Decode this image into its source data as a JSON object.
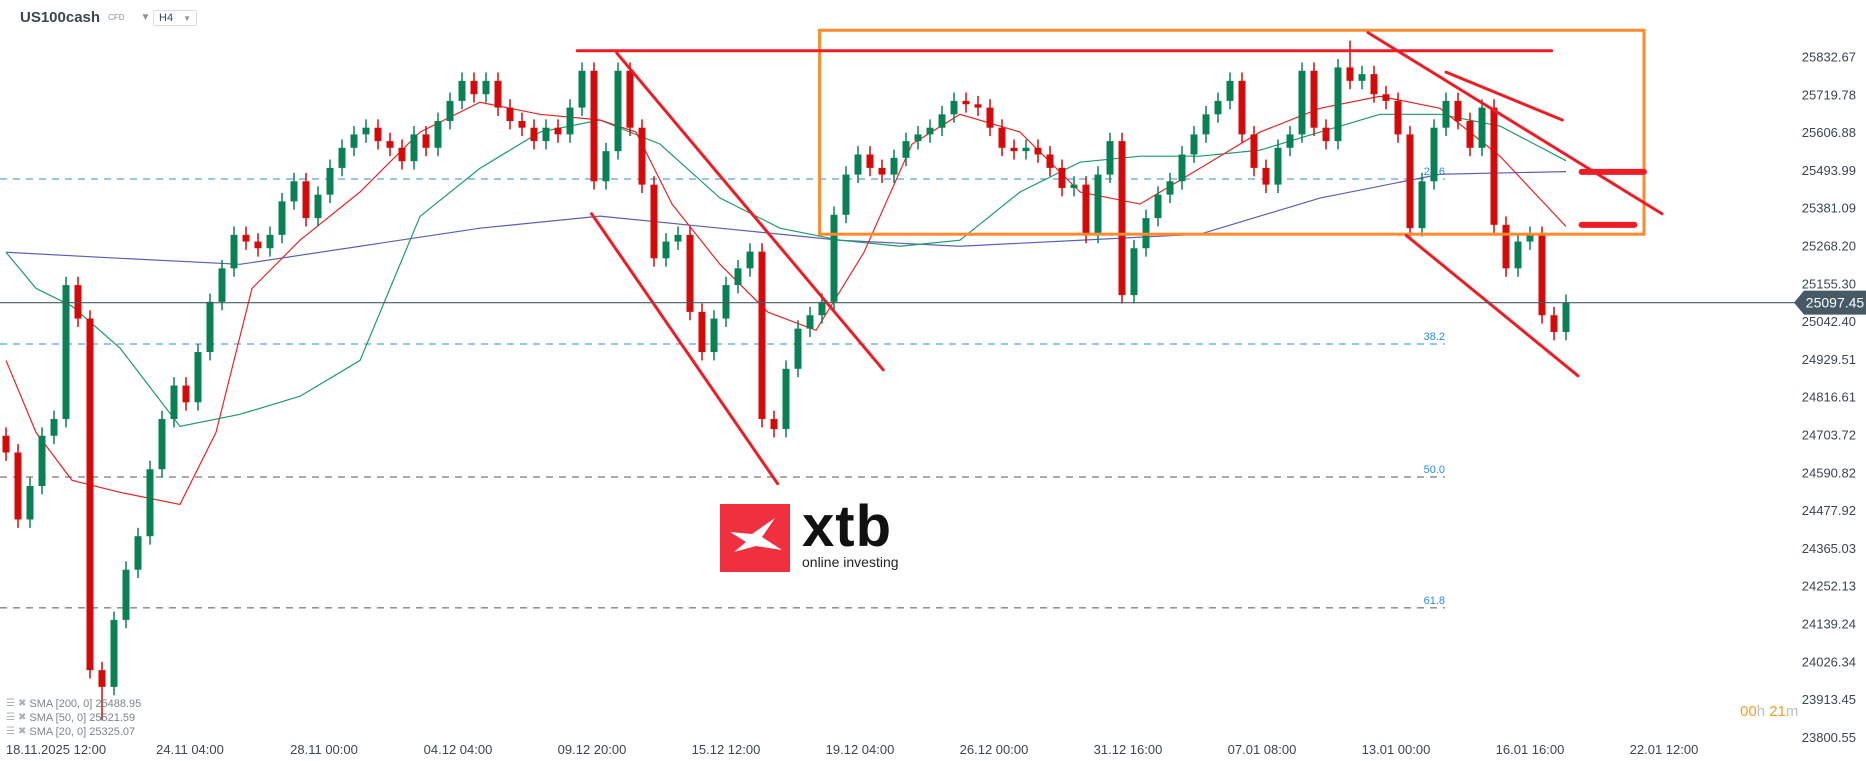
{
  "header": {
    "symbol": "US100cash",
    "symbol_type": "CFD",
    "timeframe": "H4"
  },
  "colors": {
    "up": "#0a8055",
    "down": "#d40b0b",
    "drawing_red": "#ee1c25",
    "box_orange": "#ff8a2b",
    "fib_blue": "#2a8be0",
    "current_price_bg": "#455a64",
    "sma200": "#5b60b5",
    "sma50": "#1e9a68",
    "sma20": "#e32626"
  },
  "icons": {
    "legend_settings": "bars-icon",
    "legend_remove": "close-icon",
    "symbol_menu": "chevron-down-icon",
    "timeframe_menu": "chevron-down-icon"
  },
  "logo": {
    "brand": "xtb",
    "tagline": "online investing"
  },
  "timer": {
    "hours": "00",
    "h": "h",
    "minutes": "21",
    "m": "m"
  },
  "legend": [
    {
      "label": "SMA [200, 0] 25488.95"
    },
    {
      "label": "SMA [50, 0] 25521.59"
    },
    {
      "label": "SMA [20, 0] 25325.07"
    }
  ],
  "chart_data": {
    "type": "candlestick",
    "instrument": "US100cash",
    "timeframe": "H4",
    "ylim": [
      23760,
      25940
    ],
    "y_ticks": [
      "25832.67",
      "25719.78",
      "25606.88",
      "25493.99",
      "25381.09",
      "25268.20",
      "25155.30",
      "25042.40",
      "24929.51",
      "24816.61",
      "24703.72",
      "24590.82",
      "24477.92",
      "24365.03",
      "24252.13",
      "24139.24",
      "24026.34",
      "23913.45",
      "23800.55"
    ],
    "x_ticks": [
      "18.11.2025  12:00",
      "24.11  04:00",
      "28.11  00:00",
      "04.12  04:00",
      "09.12  20:00",
      "15.12  12:00",
      "19.12  04:00",
      "26.12  00:00",
      "31.12  16:00",
      "07.01  08:00",
      "13.01  00:00",
      "16.01  16:00",
      "22.01  12:00"
    ],
    "current_price": "25097.45",
    "candles_ohlc": [
      [
        24700,
        24725,
        24625,
        24650
      ],
      [
        24650,
        24675,
        24425,
        24450
      ],
      [
        24450,
        24575,
        24425,
        24550
      ],
      [
        24550,
        24725,
        24525,
        24700
      ],
      [
        24700,
        24775,
        24675,
        24750
      ],
      [
        24750,
        25175,
        24725,
        25150
      ],
      [
        25150,
        25175,
        25025,
        25050
      ],
      [
        25050,
        25075,
        23975,
        24000
      ],
      [
        24000,
        24025,
        23850,
        23950
      ],
      [
        23950,
        24175,
        23925,
        24150
      ],
      [
        24150,
        24325,
        24125,
        24300
      ],
      [
        24300,
        24425,
        24275,
        24400
      ],
      [
        24400,
        24625,
        24375,
        24600
      ],
      [
        24600,
        24775,
        24575,
        24750
      ],
      [
        24750,
        24875,
        24725,
        24850
      ],
      [
        24850,
        24875,
        24775,
        24800
      ],
      [
        24800,
        24975,
        24775,
        24950
      ],
      [
        24950,
        25125,
        24925,
        25100
      ],
      [
        25100,
        25225,
        25075,
        25200
      ],
      [
        25200,
        25325,
        25175,
        25300
      ],
      [
        25300,
        25325,
        25255,
        25280
      ],
      [
        25280,
        25305,
        25235,
        25260
      ],
      [
        25260,
        25325,
        25235,
        25300
      ],
      [
        25300,
        25425,
        25275,
        25400
      ],
      [
        25400,
        25485,
        25375,
        25460
      ],
      [
        25460,
        25485,
        25325,
        25350
      ],
      [
        25350,
        25445,
        25325,
        25420
      ],
      [
        25420,
        25525,
        25395,
        25500
      ],
      [
        25500,
        25585,
        25475,
        25560
      ],
      [
        25560,
        25625,
        25535,
        25600
      ],
      [
        25600,
        25645,
        25575,
        25620
      ],
      [
        25620,
        25645,
        25555,
        25580
      ],
      [
        25580,
        25605,
        25535,
        25560
      ],
      [
        25560,
        25585,
        25495,
        25520
      ],
      [
        25520,
        25625,
        25495,
        25600
      ],
      [
        25600,
        25625,
        25535,
        25560
      ],
      [
        25560,
        25665,
        25535,
        25640
      ],
      [
        25640,
        25725,
        25615,
        25700
      ],
      [
        25700,
        25785,
        25675,
        25760
      ],
      [
        25760,
        25785,
        25695,
        25720
      ],
      [
        25720,
        25785,
        25695,
        25760
      ],
      [
        25760,
        25785,
        25655,
        25680
      ],
      [
        25680,
        25705,
        25615,
        25640
      ],
      [
        25640,
        25665,
        25595,
        25620
      ],
      [
        25620,
        25645,
        25555,
        25580
      ],
      [
        25580,
        25645,
        25555,
        25620
      ],
      [
        25620,
        25645,
        25575,
        25600
      ],
      [
        25600,
        25705,
        25575,
        25680
      ],
      [
        25680,
        25815,
        25655,
        25790
      ],
      [
        25790,
        25815,
        25435,
        25460
      ],
      [
        25460,
        25575,
        25435,
        25550
      ],
      [
        25550,
        25815,
        25525,
        25790
      ],
      [
        25790,
        25815,
        25595,
        25620
      ],
      [
        25620,
        25645,
        25425,
        25450
      ],
      [
        25450,
        25475,
        25205,
        25230
      ],
      [
        25230,
        25305,
        25205,
        25280
      ],
      [
        25280,
        25325,
        25255,
        25300
      ],
      [
        25300,
        25325,
        25045,
        25070
      ],
      [
        25070,
        25095,
        24925,
        24950
      ],
      [
        24950,
        25075,
        24925,
        25050
      ],
      [
        25050,
        25175,
        25025,
        25150
      ],
      [
        25150,
        25225,
        25125,
        25200
      ],
      [
        25200,
        25275,
        25175,
        25250
      ],
      [
        25250,
        25275,
        24725,
        24750
      ],
      [
        24750,
        24775,
        24695,
        24720
      ],
      [
        24720,
        24925,
        24695,
        24900
      ],
      [
        24900,
        25045,
        24875,
        25020
      ],
      [
        25020,
        25085,
        24995,
        25060
      ],
      [
        25060,
        25125,
        25035,
        25100
      ],
      [
        25100,
        25385,
        25075,
        25360
      ],
      [
        25360,
        25505,
        25335,
        25480
      ],
      [
        25480,
        25565,
        25455,
        25540
      ],
      [
        25540,
        25565,
        25475,
        25500
      ],
      [
        25500,
        25525,
        25455,
        25480
      ],
      [
        25480,
        25555,
        25455,
        25530
      ],
      [
        25530,
        25605,
        25505,
        25580
      ],
      [
        25580,
        25625,
        25555,
        25600
      ],
      [
        25600,
        25645,
        25575,
        25620
      ],
      [
        25620,
        25685,
        25595,
        25660
      ],
      [
        25660,
        25725,
        25635,
        25700
      ],
      [
        25700,
        25725,
        25665,
        25690
      ],
      [
        25690,
        25715,
        25655,
        25680
      ],
      [
        25680,
        25705,
        25595,
        25620
      ],
      [
        25620,
        25645,
        25535,
        25560
      ],
      [
        25560,
        25585,
        25525,
        25550
      ],
      [
        25550,
        25585,
        25525,
        25560
      ],
      [
        25560,
        25585,
        25515,
        25540
      ],
      [
        25540,
        25565,
        25475,
        25500
      ],
      [
        25500,
        25525,
        25415,
        25440
      ],
      [
        25440,
        25475,
        25415,
        25450
      ],
      [
        25450,
        25475,
        25275,
        25300
      ],
      [
        25300,
        25505,
        25275,
        25480
      ],
      [
        25480,
        25605,
        25455,
        25580
      ],
      [
        25580,
        25605,
        25095,
        25120
      ],
      [
        25120,
        25285,
        25095,
        25260
      ],
      [
        25260,
        25375,
        25235,
        25350
      ],
      [
        25350,
        25445,
        25325,
        25420
      ],
      [
        25420,
        25485,
        25395,
        25460
      ],
      [
        25460,
        25565,
        25435,
        25540
      ],
      [
        25540,
        25625,
        25515,
        25600
      ],
      [
        25600,
        25685,
        25575,
        25660
      ],
      [
        25660,
        25725,
        25635,
        25700
      ],
      [
        25700,
        25785,
        25675,
        25760
      ],
      [
        25760,
        25785,
        25575,
        25600
      ],
      [
        25600,
        25625,
        25475,
        25500
      ],
      [
        25500,
        25525,
        25425,
        25450
      ],
      [
        25450,
        25585,
        25425,
        25560
      ],
      [
        25560,
        25625,
        25535,
        25600
      ],
      [
        25600,
        25815,
        25575,
        25790
      ],
      [
        25790,
        25815,
        25595,
        25620
      ],
      [
        25620,
        25645,
        25555,
        25580
      ],
      [
        25580,
        25825,
        25555,
        25800
      ],
      [
        25800,
        25880,
        25735,
        25760
      ],
      [
        25760,
        25805,
        25735,
        25780
      ],
      [
        25780,
        25805,
        25695,
        25720
      ],
      [
        25720,
        25745,
        25675,
        25700
      ],
      [
        25700,
        25725,
        25575,
        25600
      ],
      [
        25600,
        25625,
        25295,
        25320
      ],
      [
        25320,
        25485,
        25295,
        25460
      ],
      [
        25460,
        25645,
        25435,
        25620
      ],
      [
        25620,
        25725,
        25595,
        25700
      ],
      [
        25700,
        25725,
        25615,
        25640
      ],
      [
        25640,
        25665,
        25535,
        25560
      ],
      [
        25560,
        25705,
        25535,
        25680
      ],
      [
        25680,
        25705,
        25305,
        25330
      ],
      [
        25330,
        25355,
        25175,
        25200
      ],
      [
        25200,
        25305,
        25175,
        25280
      ],
      [
        25280,
        25325,
        25255,
        25300
      ],
      [
        25300,
        25325,
        25035,
        25060
      ],
      [
        25060,
        25085,
        24985,
        25010
      ],
      [
        25010,
        25122,
        24985,
        25097.45
      ]
    ],
    "sma_series": [
      {
        "name": "SMA [200, 0]",
        "value": "25488.95",
        "points": [
          [
            0,
            25248
          ],
          [
            9.5,
            25230
          ],
          [
            19.5,
            25212
          ],
          [
            29.5,
            25266
          ],
          [
            39.5,
            25320
          ],
          [
            49.5,
            25356
          ],
          [
            59.5,
            25320
          ],
          [
            69.5,
            25284
          ],
          [
            79.5,
            25266
          ],
          [
            89.5,
            25284
          ],
          [
            99.5,
            25302
          ],
          [
            109.5,
            25410
          ],
          [
            119.5,
            25481
          ],
          [
            130,
            25488.95
          ]
        ]
      },
      {
        "name": "SMA [50, 0]",
        "value": "25521.59",
        "points": [
          [
            0,
            25248
          ],
          [
            2.5,
            25140
          ],
          [
            5.5,
            25087
          ],
          [
            9.5,
            24962
          ],
          [
            14.5,
            24728
          ],
          [
            19.5,
            24764
          ],
          [
            24.5,
            24818
          ],
          [
            29.5,
            24925
          ],
          [
            34.5,
            25355
          ],
          [
            39.5,
            25499
          ],
          [
            44.5,
            25607
          ],
          [
            49.5,
            25643
          ],
          [
            54.5,
            25571
          ],
          [
            59.5,
            25410
          ],
          [
            64.5,
            25320
          ],
          [
            69.5,
            25284
          ],
          [
            74.5,
            25266
          ],
          [
            79.5,
            25284
          ],
          [
            84.5,
            25428
          ],
          [
            89.5,
            25517
          ],
          [
            94.5,
            25535
          ],
          [
            99.5,
            25535
          ],
          [
            104.5,
            25553
          ],
          [
            109.5,
            25607
          ],
          [
            114.5,
            25660
          ],
          [
            119.5,
            25660
          ],
          [
            124.5,
            25625
          ],
          [
            130,
            25521.59
          ]
        ]
      },
      {
        "name": "SMA [20, 0]",
        "value": "25325.07",
        "points": [
          [
            0,
            24925
          ],
          [
            2.5,
            24710
          ],
          [
            5.5,
            24567
          ],
          [
            9.5,
            24531
          ],
          [
            14.5,
            24495
          ],
          [
            17.5,
            24710
          ],
          [
            20.5,
            25140
          ],
          [
            24.5,
            25284
          ],
          [
            29.5,
            25428
          ],
          [
            34.5,
            25607
          ],
          [
            39.5,
            25696
          ],
          [
            44.5,
            25660
          ],
          [
            49.5,
            25643
          ],
          [
            52.5,
            25607
          ],
          [
            55.5,
            25392
          ],
          [
            59.5,
            25212
          ],
          [
            63.5,
            25069
          ],
          [
            67.5,
            25015
          ],
          [
            71.5,
            25248
          ],
          [
            75.5,
            25571
          ],
          [
            79.5,
            25660
          ],
          [
            84.5,
            25607
          ],
          [
            89.5,
            25428
          ],
          [
            94.5,
            25392
          ],
          [
            99.5,
            25499
          ],
          [
            104.5,
            25607
          ],
          [
            109.5,
            25678
          ],
          [
            114.5,
            25714
          ],
          [
            119.5,
            25678
          ],
          [
            124.5,
            25535
          ],
          [
            130,
            25325.07
          ]
        ]
      }
    ],
    "fib_levels": [
      {
        "label": "23.6",
        "price": 25467
      },
      {
        "label": "38.2",
        "price": 24974
      },
      {
        "label": "50.0",
        "price": 24577
      },
      {
        "label": "61.8",
        "price": 24186
      }
    ],
    "drawings": {
      "range_box": {
        "from_index": 67.8,
        "to_index": 136.5,
        "top": 25911,
        "bottom": 25302
      },
      "lines": [
        {
          "name": "top-resistance-line",
          "p1": [
            47.6,
            25850
          ],
          "p2": [
            128.8,
            25850
          ]
        },
        {
          "name": "falling-channel-lower",
          "p1": [
            48.8,
            25363
          ],
          "p2": [
            64.3,
            24557
          ]
        },
        {
          "name": "falling-channel-upper",
          "p1": [
            50.9,
            25843
          ],
          "p2": [
            73.1,
            24897
          ]
        },
        {
          "name": "descending-trendline",
          "p1": [
            113.5,
            25904
          ],
          "p2": [
            138,
            25363
          ]
        },
        {
          "name": "short-trendline",
          "p1": [
            120,
            25786
          ],
          "p2": [
            129.7,
            25643
          ]
        },
        {
          "name": "lower-channel-line",
          "p1": [
            116.7,
            25298
          ],
          "p2": [
            131,
            24879
          ]
        },
        {
          "name": "target-level-upper",
          "p1": [
            131.3,
            25488
          ],
          "p2": [
            136.5,
            25488
          ]
        },
        {
          "name": "target-level-lower",
          "p1": [
            131.3,
            25330
          ],
          "p2": [
            135.7,
            25330
          ]
        }
      ]
    }
  }
}
